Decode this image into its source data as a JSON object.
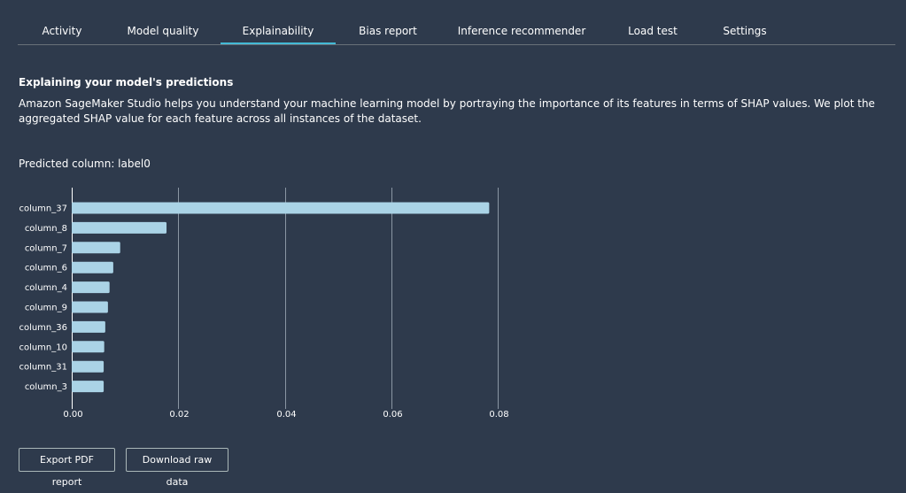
{
  "tabs": [
    {
      "label": "Activity"
    },
    {
      "label": "Model quality"
    },
    {
      "label": "Explainability"
    },
    {
      "label": "Bias report"
    },
    {
      "label": "Inference recommender"
    },
    {
      "label": "Load test"
    },
    {
      "label": "Settings"
    }
  ],
  "active_tab": "Explainability",
  "section": {
    "title": "Explaining your model's predictions",
    "description": "Amazon SageMaker Studio helps you understand your machine learning model by portraying the importance of its features in terms of SHAP values. We plot the aggregated SHAP value for each feature across all instances of the dataset.",
    "predicted_column": "Predicted column: label0"
  },
  "chart_data": {
    "type": "bar",
    "orientation": "horizontal",
    "categories": [
      "column_37",
      "column_8",
      "column_7",
      "column_6",
      "column_4",
      "column_9",
      "column_36",
      "column_10",
      "column_31",
      "column_3"
    ],
    "values": [
      0.0784,
      0.0178,
      0.0091,
      0.0078,
      0.0071,
      0.0068,
      0.0063,
      0.0061,
      0.006,
      0.006
    ],
    "xlim": [
      0,
      0.08
    ],
    "xticks": [
      "0.00",
      "0.02",
      "0.04",
      "0.06",
      "0.08"
    ],
    "grid": true,
    "bar_color": "#aad3e6"
  },
  "buttons": {
    "export_pdf": "Export PDF report",
    "download_raw": "Download raw data"
  }
}
